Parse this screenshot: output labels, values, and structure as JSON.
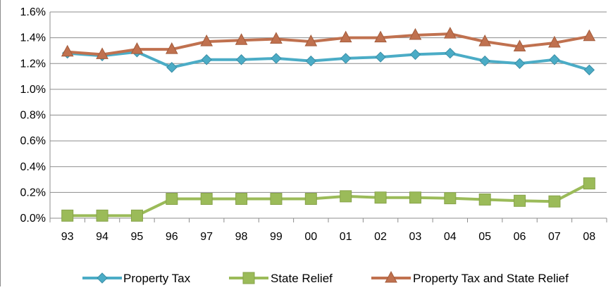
{
  "chart_data": {
    "type": "line",
    "title": "",
    "xlabel": "",
    "ylabel": "",
    "categories": [
      "93",
      "94",
      "95",
      "96",
      "97",
      "98",
      "99",
      "00",
      "01",
      "02",
      "03",
      "04",
      "05",
      "06",
      "07",
      "08"
    ],
    "ylim": [
      0,
      1.6
    ],
    "yticks": [
      "0.0%",
      "0.2%",
      "0.4%",
      "0.6%",
      "0.8%",
      "1.0%",
      "1.2%",
      "1.4%",
      "1.6%"
    ],
    "grid": true,
    "legend_position": "bottom",
    "series": [
      {
        "name": "Property Tax",
        "marker": "diamond",
        "color": "#4bacc6",
        "values": [
          1.28,
          1.26,
          1.29,
          1.17,
          1.23,
          1.23,
          1.24,
          1.22,
          1.24,
          1.25,
          1.27,
          1.28,
          1.22,
          1.2,
          1.23,
          1.15
        ]
      },
      {
        "name": "State Relief",
        "marker": "square",
        "color": "#9bbb59",
        "values": [
          0.02,
          0.02,
          0.02,
          0.15,
          0.15,
          0.15,
          0.15,
          0.15,
          0.17,
          0.16,
          0.16,
          0.155,
          0.145,
          0.135,
          0.13,
          0.27
        ]
      },
      {
        "name": "Property Tax and State Relief",
        "marker": "triangle",
        "color": "#c0714f",
        "values": [
          1.29,
          1.27,
          1.31,
          1.31,
          1.37,
          1.38,
          1.39,
          1.37,
          1.4,
          1.4,
          1.42,
          1.43,
          1.37,
          1.33,
          1.36,
          1.41
        ]
      }
    ]
  }
}
